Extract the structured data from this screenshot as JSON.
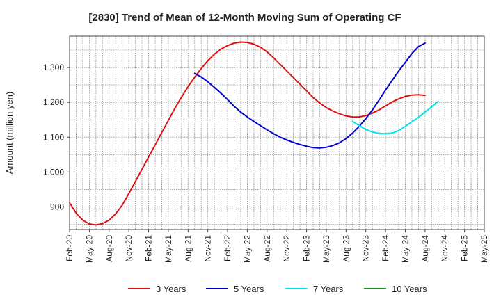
{
  "chart_data": {
    "type": "line",
    "title": "[2830]  Trend of Mean of 12-Month Moving Sum of Operating CF",
    "xlabel": "",
    "ylabel": "Amount (million yen)",
    "ylim": [
      835,
      1390
    ],
    "yticks": [
      900,
      1000,
      1100,
      1200,
      1300
    ],
    "ytick_labels": [
      "900",
      "1,000",
      "1,100",
      "1,200",
      "1,300"
    ],
    "x_range_months": [
      0,
      63
    ],
    "xticks": [
      {
        "label": "Feb-20",
        "m": 0
      },
      {
        "label": "May-20",
        "m": 3
      },
      {
        "label": "Aug-20",
        "m": 6
      },
      {
        "label": "Nov-20",
        "m": 9
      },
      {
        "label": "Feb-21",
        "m": 12
      },
      {
        "label": "May-21",
        "m": 15
      },
      {
        "label": "Aug-21",
        "m": 18
      },
      {
        "label": "Nov-21",
        "m": 21
      },
      {
        "label": "Feb-22",
        "m": 24
      },
      {
        "label": "May-22",
        "m": 27
      },
      {
        "label": "Aug-22",
        "m": 30
      },
      {
        "label": "Nov-22",
        "m": 33
      },
      {
        "label": "Feb-23",
        "m": 36
      },
      {
        "label": "May-23",
        "m": 39
      },
      {
        "label": "Aug-23",
        "m": 42
      },
      {
        "label": "Nov-23",
        "m": 45
      },
      {
        "label": "Feb-24",
        "m": 48
      },
      {
        "label": "May-24",
        "m": 51
      },
      {
        "label": "Aug-24",
        "m": 54
      },
      {
        "label": "Nov-24",
        "m": 57
      },
      {
        "label": "Feb-25",
        "m": 60
      },
      {
        "label": "May-25",
        "m": 63
      }
    ],
    "grid": true,
    "legend_position": "bottom",
    "series": [
      {
        "name": "3 Years",
        "color": "#dd1111",
        "points": [
          [
            0,
            912
          ],
          [
            1,
            882
          ],
          [
            2,
            862
          ],
          [
            3,
            851
          ],
          [
            4,
            848
          ],
          [
            5,
            852
          ],
          [
            6,
            862
          ],
          [
            7,
            880
          ],
          [
            8,
            905
          ],
          [
            9,
            938
          ],
          [
            10,
            973
          ],
          [
            11,
            1008
          ],
          [
            12,
            1043
          ],
          [
            13,
            1078
          ],
          [
            14,
            1113
          ],
          [
            15,
            1148
          ],
          [
            16,
            1183
          ],
          [
            17,
            1215
          ],
          [
            18,
            1245
          ],
          [
            19,
            1272
          ],
          [
            20,
            1297
          ],
          [
            21,
            1320
          ],
          [
            22,
            1338
          ],
          [
            23,
            1353
          ],
          [
            24,
            1363
          ],
          [
            25,
            1370
          ],
          [
            26,
            1373
          ],
          [
            27,
            1372
          ],
          [
            28,
            1367
          ],
          [
            29,
            1358
          ],
          [
            30,
            1345
          ],
          [
            31,
            1328
          ],
          [
            32,
            1309
          ],
          [
            33,
            1290
          ],
          [
            34,
            1271
          ],
          [
            35,
            1252
          ],
          [
            36,
            1233
          ],
          [
            37,
            1214
          ],
          [
            38,
            1198
          ],
          [
            39,
            1185
          ],
          [
            40,
            1175
          ],
          [
            41,
            1167
          ],
          [
            42,
            1161
          ],
          [
            43,
            1158
          ],
          [
            44,
            1158
          ],
          [
            45,
            1162
          ],
          [
            46,
            1169
          ],
          [
            47,
            1178
          ],
          [
            48,
            1190
          ],
          [
            49,
            1201
          ],
          [
            50,
            1210
          ],
          [
            51,
            1217
          ],
          [
            52,
            1221
          ],
          [
            53,
            1222
          ],
          [
            54,
            1220
          ]
        ]
      },
      {
        "name": "5 Years",
        "color": "#0000cc",
        "points": [
          [
            19,
            1283
          ],
          [
            20,
            1273
          ],
          [
            21,
            1259
          ],
          [
            22,
            1243
          ],
          [
            23,
            1226
          ],
          [
            24,
            1208
          ],
          [
            25,
            1189
          ],
          [
            26,
            1172
          ],
          [
            27,
            1158
          ],
          [
            28,
            1145
          ],
          [
            29,
            1133
          ],
          [
            30,
            1121
          ],
          [
            31,
            1110
          ],
          [
            32,
            1100
          ],
          [
            33,
            1092
          ],
          [
            34,
            1085
          ],
          [
            35,
            1079
          ],
          [
            36,
            1074
          ],
          [
            37,
            1070
          ],
          [
            38,
            1069
          ],
          [
            39,
            1071
          ],
          [
            40,
            1076
          ],
          [
            41,
            1084
          ],
          [
            42,
            1096
          ],
          [
            43,
            1112
          ],
          [
            44,
            1131
          ],
          [
            45,
            1153
          ],
          [
            46,
            1178
          ],
          [
            47,
            1206
          ],
          [
            48,
            1235
          ],
          [
            49,
            1263
          ],
          [
            50,
            1290
          ],
          [
            51,
            1315
          ],
          [
            52,
            1340
          ],
          [
            53,
            1360
          ],
          [
            54,
            1370
          ]
        ]
      },
      {
        "name": "7 Years",
        "color": "#00e5ee",
        "points": [
          [
            43,
            1145
          ],
          [
            44,
            1133
          ],
          [
            45,
            1122
          ],
          [
            46,
            1115
          ],
          [
            47,
            1111
          ],
          [
            48,
            1110
          ],
          [
            49,
            1112
          ],
          [
            50,
            1119
          ],
          [
            51,
            1131
          ],
          [
            52,
            1144
          ],
          [
            53,
            1157
          ],
          [
            54,
            1172
          ],
          [
            55,
            1187
          ],
          [
            56,
            1203
          ]
        ]
      },
      {
        "name": "10 Years",
        "color": "#228b22",
        "points": []
      }
    ]
  }
}
